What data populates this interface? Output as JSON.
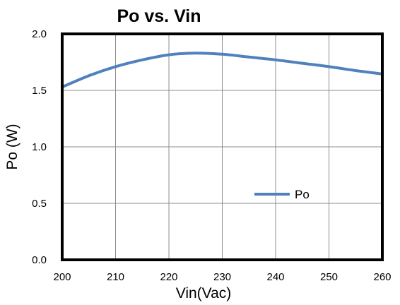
{
  "chart_data": {
    "type": "line",
    "title": "Po vs. Vin",
    "xlabel": "Vin(Vac)",
    "ylabel": "Po (W)",
    "xlim": [
      200,
      260
    ],
    "ylim": [
      0.0,
      2.0
    ],
    "x_ticks": [
      "200",
      "210",
      "220",
      "230",
      "240",
      "250",
      "260"
    ],
    "y_ticks": [
      "0.0",
      "0.5",
      "1.0",
      "1.5",
      "2.0"
    ],
    "grid": true,
    "legend_position": "lower-right",
    "series": [
      {
        "name": "Po",
        "color": "#4f81bd",
        "x": [
          200,
          205,
          210,
          215,
          220,
          225,
          230,
          235,
          240,
          245,
          250,
          255,
          260
        ],
        "y": [
          1.53,
          1.63,
          1.71,
          1.77,
          1.815,
          1.83,
          1.82,
          1.795,
          1.77,
          1.74,
          1.71,
          1.675,
          1.645
        ]
      }
    ]
  }
}
